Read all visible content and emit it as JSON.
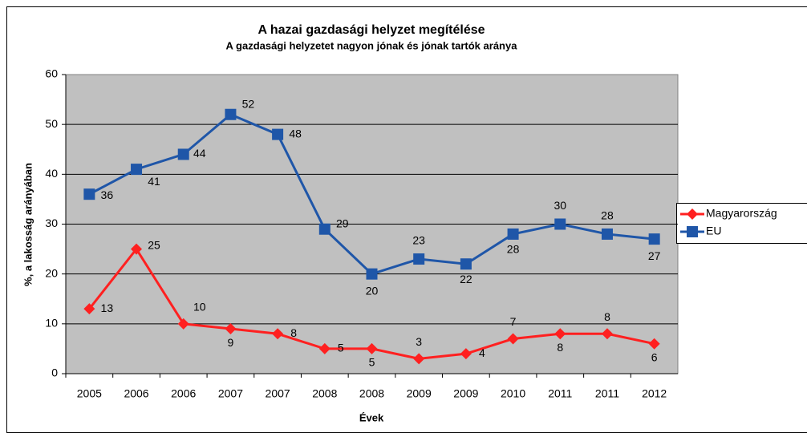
{
  "chart_data": {
    "type": "line",
    "title": "A hazai gazdasági helyzet megítélése",
    "subtitle": "A gazdasági helyzetet nagyon jónak és jónak tartók aránya",
    "xlabel": "Évek",
    "ylabel": "%, a lakosság arányában",
    "categories": [
      "2005",
      "2006",
      "2006",
      "2007",
      "2007",
      "2008",
      "2008",
      "2009",
      "2009",
      "2010",
      "2011",
      "2011",
      "2012"
    ],
    "series": [
      {
        "name": "Magyarország",
        "color": "#ff2020",
        "marker": "diamond",
        "values": [
          13,
          25,
          10,
          9,
          8,
          5,
          5,
          3,
          4,
          7,
          8,
          8,
          6
        ]
      },
      {
        "name": "EU",
        "color": "#1f56a8",
        "marker": "square",
        "values": [
          36,
          41,
          44,
          52,
          48,
          29,
          20,
          23,
          22,
          28,
          30,
          28,
          27
        ]
      }
    ],
    "ylim": [
      0,
      60
    ],
    "yticks": [
      0,
      10,
      20,
      30,
      40,
      50,
      60
    ],
    "grid": true,
    "legend": "right"
  }
}
